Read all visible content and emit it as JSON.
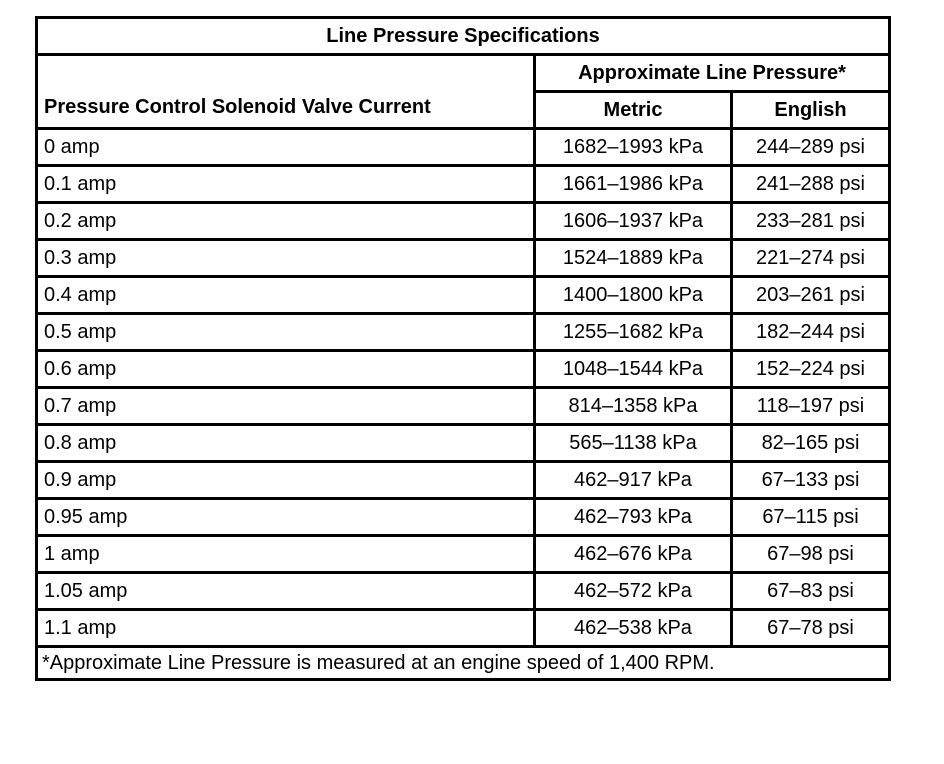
{
  "table": {
    "title": "Line Pressure Specifications",
    "columns": {
      "current": "Pressure Control Solenoid Valve Current",
      "group": "Approximate Line Pressure*",
      "metric": "Metric",
      "english": "English"
    },
    "rows": [
      {
        "current": "0 amp",
        "metric": "1682–1993 kPa",
        "english": "244–289 psi"
      },
      {
        "current": "0.1 amp",
        "metric": "1661–1986 kPa",
        "english": "241–288 psi"
      },
      {
        "current": "0.2 amp",
        "metric": "1606–1937 kPa",
        "english": "233–281 psi"
      },
      {
        "current": "0.3 amp",
        "metric": "1524–1889 kPa",
        "english": "221–274 psi"
      },
      {
        "current": "0.4 amp",
        "metric": "1400–1800 kPa",
        "english": "203–261 psi"
      },
      {
        "current": "0.5 amp",
        "metric": "1255–1682 kPa",
        "english": "182–244 psi"
      },
      {
        "current": "0.6 amp",
        "metric": "1048–1544 kPa",
        "english": "152–224 psi"
      },
      {
        "current": "0.7 amp",
        "metric": "814–1358 kPa",
        "english": "118–197 psi"
      },
      {
        "current": "0.8 amp",
        "metric": "565–1138 kPa",
        "english": "82–165 psi"
      },
      {
        "current": "0.9 amp",
        "metric": "462–917 kPa",
        "english": "67–133 psi"
      },
      {
        "current": "0.95 amp",
        "metric": "462–793 kPa",
        "english": "67–115 psi"
      },
      {
        "current": "1 amp",
        "metric": "462–676 kPa",
        "english": "67–98 psi"
      },
      {
        "current": "1.05 amp",
        "metric": "462–572 kPa",
        "english": "67–83 psi"
      },
      {
        "current": "1.1 amp",
        "metric": "462–538 kPa",
        "english": "67–78 psi"
      }
    ],
    "footnote": "*Approximate Line Pressure is measured at an engine speed of 1,400 RPM."
  },
  "colors": {
    "border": "#000000",
    "background": "#ffffff",
    "text": "#000000"
  }
}
